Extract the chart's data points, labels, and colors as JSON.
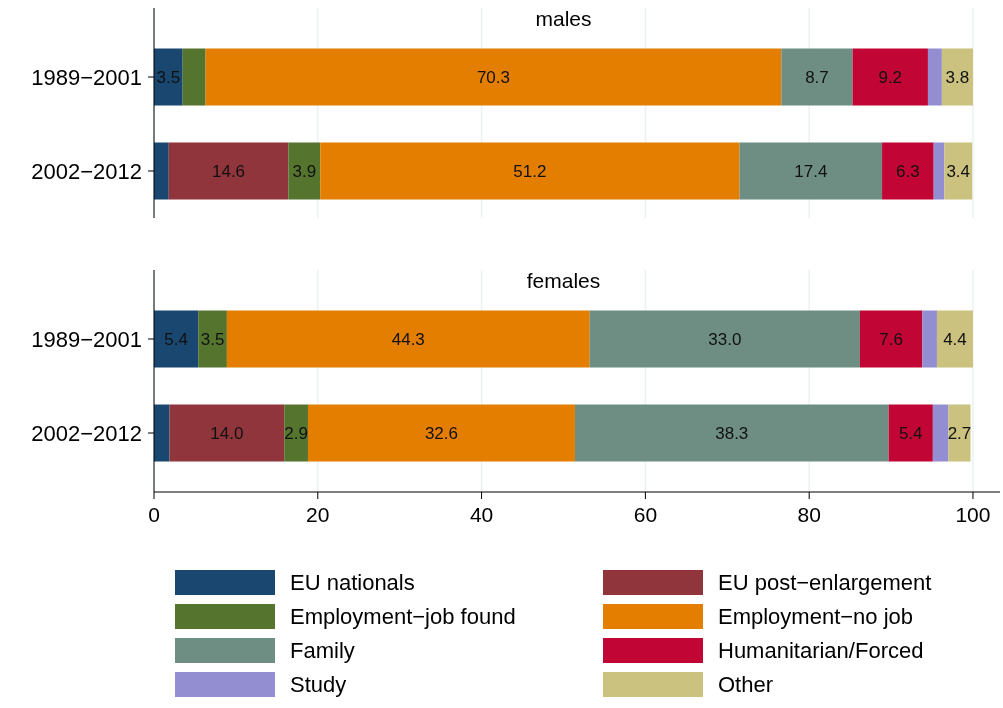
{
  "chart_data": [
    {
      "type": "bar",
      "title": "males",
      "orientation": "horizontal",
      "stacked": true,
      "categories": [
        "1989−2001",
        "2002−2012"
      ],
      "xlim": [
        0,
        103.3
      ],
      "xticks": [
        0,
        20,
        40,
        60,
        80,
        100
      ],
      "tick_labels": "y",
      "grid": "x",
      "legend": false,
      "series": [
        {
          "color": "#1a476f",
          "values": [
            3.5,
            1.8
          ],
          "value_labels": [
            "3.5",
            null
          ]
        },
        {
          "color": "#90353b",
          "values": [
            0,
            14.6
          ],
          "value_labels": [
            null,
            "14.6"
          ]
        },
        {
          "color": "#55752f",
          "values": [
            2.8,
            3.9
          ],
          "value_labels": [
            null,
            "3.9"
          ]
        },
        {
          "color": "#e37e00",
          "values": [
            70.3,
            51.2
          ],
          "value_labels": [
            "70.3",
            "51.2"
          ]
        },
        {
          "color": "#6e8e84",
          "values": [
            8.7,
            17.4
          ],
          "value_labels": [
            "8.7",
            "17.4"
          ]
        },
        {
          "color": "#c10534",
          "values": [
            9.2,
            6.3
          ],
          "value_labels": [
            "9.2",
            "6.3"
          ]
        },
        {
          "color": "#938dd2",
          "values": [
            1.7,
            1.3
          ],
          "value_labels": [
            null,
            null
          ]
        },
        {
          "color": "#cac27e",
          "values": [
            3.8,
            3.4
          ],
          "value_labels": [
            "3.8",
            "3.4"
          ]
        }
      ]
    },
    {
      "type": "bar",
      "title": "females",
      "orientation": "horizontal",
      "stacked": true,
      "categories": [
        "1989−2001",
        "2002−2012"
      ],
      "xlim": [
        0,
        103.3
      ],
      "xticks": [
        0,
        20,
        40,
        60,
        80,
        100
      ],
      "grid": "x",
      "legend": "bottom",
      "series": [
        {
          "name": "EU nationals",
          "color": "#1a476f",
          "values": [
            5.4,
            1.9
          ],
          "value_labels": [
            "5.4",
            null
          ]
        },
        {
          "name": "EU post−enlargement",
          "color": "#90353b",
          "values": [
            0,
            14.0
          ],
          "value_labels": [
            null,
            "14.0"
          ]
        },
        {
          "name": "Employment−job found",
          "color": "#55752f",
          "values": [
            3.5,
            2.9
          ],
          "value_labels": [
            "3.5",
            "2.9"
          ]
        },
        {
          "name": "Employment−no job",
          "color": "#e37e00",
          "values": [
            44.3,
            32.6
          ],
          "value_labels": [
            "44.3",
            "32.6"
          ]
        },
        {
          "name": "Family",
          "color": "#6e8e84",
          "values": [
            33.0,
            38.3
          ],
          "value_labels": [
            "33.0",
            "38.3"
          ]
        },
        {
          "name": "Humanitarian/Forced",
          "color": "#c10534",
          "values": [
            7.6,
            5.4
          ],
          "value_labels": [
            "7.6",
            "5.4"
          ]
        },
        {
          "name": "Study",
          "color": "#938dd2",
          "values": [
            1.8,
            1.9
          ],
          "value_labels": [
            null,
            null
          ]
        },
        {
          "name": "Other",
          "color": "#cac27e",
          "values": [
            4.4,
            2.7
          ],
          "value_labels": [
            "4.4",
            "2.7"
          ]
        }
      ]
    }
  ]
}
